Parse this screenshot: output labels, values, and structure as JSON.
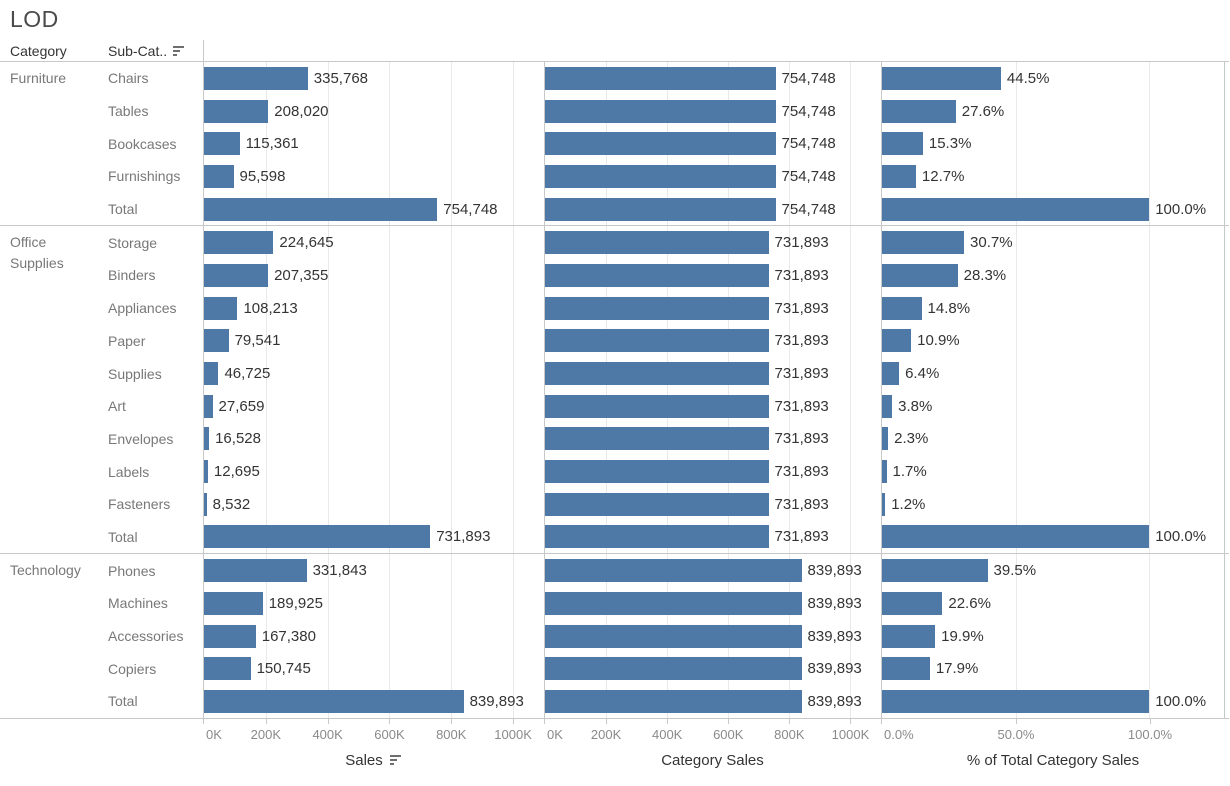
{
  "title": "LOD",
  "header": {
    "category": "Category",
    "subcategory": "Sub-Cat..",
    "subcategory_sort_icon": "sort-descending-icon"
  },
  "colors": {
    "bar": "#4e79a7",
    "panel_border": "#c8c8c8",
    "gridline": "#e9e9e9",
    "row_label_text": "#787878",
    "value_label_text": "#343434"
  },
  "chart_data": {
    "type": "bar",
    "title": "LOD",
    "orientation": "horizontal",
    "legend": "none",
    "grid": "vertical-light",
    "panels": [
      {
        "field": "sales",
        "title": "Sales",
        "sort_icon": "sort-descending-icon",
        "xlim": [
          0,
          1100000
        ],
        "tick_values": [
          0,
          200000,
          400000,
          600000,
          800000,
          1000000
        ],
        "ticks": [
          "0K",
          "200K",
          "400K",
          "600K",
          "800K",
          "1000K"
        ]
      },
      {
        "field": "category_sales",
        "title": "Category Sales",
        "xlim": [
          0,
          1100000
        ],
        "tick_values": [
          0,
          200000,
          400000,
          600000,
          800000,
          1000000
        ],
        "ticks": [
          "0K",
          "200K",
          "400K",
          "600K",
          "800K",
          "1000K"
        ]
      },
      {
        "field": "pct",
        "title": "% of Total Category Sales",
        "xlim": [
          0,
          128
        ],
        "tick_values": [
          0,
          50,
          100
        ],
        "ticks": [
          "0.0%",
          "50.0%",
          "100.0%"
        ]
      }
    ],
    "groups": [
      {
        "category": "Furniture",
        "rows": [
          {
            "subcategory": "Chairs",
            "sales": 335768,
            "sales_label": "335,768",
            "category_sales": 754748,
            "category_sales_label": "754,748",
            "pct": 44.5,
            "pct_label": "44.5%"
          },
          {
            "subcategory": "Tables",
            "sales": 208020,
            "sales_label": "208,020",
            "category_sales": 754748,
            "category_sales_label": "754,748",
            "pct": 27.6,
            "pct_label": "27.6%"
          },
          {
            "subcategory": "Bookcases",
            "sales": 115361,
            "sales_label": "115,361",
            "category_sales": 754748,
            "category_sales_label": "754,748",
            "pct": 15.3,
            "pct_label": "15.3%"
          },
          {
            "subcategory": "Furnishings",
            "sales": 95598,
            "sales_label": "95,598",
            "category_sales": 754748,
            "category_sales_label": "754,748",
            "pct": 12.7,
            "pct_label": "12.7%"
          },
          {
            "subcategory": "Total",
            "sales": 754748,
            "sales_label": "754,748",
            "category_sales": 754748,
            "category_sales_label": "754,748",
            "pct": 100.0,
            "pct_label": "100.0%"
          }
        ]
      },
      {
        "category": "Office Supplies",
        "rows": [
          {
            "subcategory": "Storage",
            "sales": 224645,
            "sales_label": "224,645",
            "category_sales": 731893,
            "category_sales_label": "731,893",
            "pct": 30.7,
            "pct_label": "30.7%"
          },
          {
            "subcategory": "Binders",
            "sales": 207355,
            "sales_label": "207,355",
            "category_sales": 731893,
            "category_sales_label": "731,893",
            "pct": 28.3,
            "pct_label": "28.3%"
          },
          {
            "subcategory": "Appliances",
            "sales": 108213,
            "sales_label": "108,213",
            "category_sales": 731893,
            "category_sales_label": "731,893",
            "pct": 14.8,
            "pct_label": "14.8%"
          },
          {
            "subcategory": "Paper",
            "sales": 79541,
            "sales_label": "79,541",
            "category_sales": 731893,
            "category_sales_label": "731,893",
            "pct": 10.9,
            "pct_label": "10.9%"
          },
          {
            "subcategory": "Supplies",
            "sales": 46725,
            "sales_label": "46,725",
            "category_sales": 731893,
            "category_sales_label": "731,893",
            "pct": 6.4,
            "pct_label": "6.4%"
          },
          {
            "subcategory": "Art",
            "sales": 27659,
            "sales_label": "27,659",
            "category_sales": 731893,
            "category_sales_label": "731,893",
            "pct": 3.8,
            "pct_label": "3.8%"
          },
          {
            "subcategory": "Envelopes",
            "sales": 16528,
            "sales_label": "16,528",
            "category_sales": 731893,
            "category_sales_label": "731,893",
            "pct": 2.3,
            "pct_label": "2.3%"
          },
          {
            "subcategory": "Labels",
            "sales": 12695,
            "sales_label": "12,695",
            "category_sales": 731893,
            "category_sales_label": "731,893",
            "pct": 1.7,
            "pct_label": "1.7%"
          },
          {
            "subcategory": "Fasteners",
            "sales": 8532,
            "sales_label": "8,532",
            "category_sales": 731893,
            "category_sales_label": "731,893",
            "pct": 1.2,
            "pct_label": "1.2%"
          },
          {
            "subcategory": "Total",
            "sales": 731893,
            "sales_label": "731,893",
            "category_sales": 731893,
            "category_sales_label": "731,893",
            "pct": 100.0,
            "pct_label": "100.0%"
          }
        ]
      },
      {
        "category": "Technology",
        "rows": [
          {
            "subcategory": "Phones",
            "sales": 331843,
            "sales_label": "331,843",
            "category_sales": 839893,
            "category_sales_label": "839,893",
            "pct": 39.5,
            "pct_label": "39.5%"
          },
          {
            "subcategory": "Machines",
            "sales": 189925,
            "sales_label": "189,925",
            "category_sales": 839893,
            "category_sales_label": "839,893",
            "pct": 22.6,
            "pct_label": "22.6%"
          },
          {
            "subcategory": "Accessories",
            "sales": 167380,
            "sales_label": "167,380",
            "category_sales": 839893,
            "category_sales_label": "839,893",
            "pct": 19.9,
            "pct_label": "19.9%"
          },
          {
            "subcategory": "Copiers",
            "sales": 150745,
            "sales_label": "150,745",
            "category_sales": 839893,
            "category_sales_label": "839,893",
            "pct": 17.9,
            "pct_label": "17.9%"
          },
          {
            "subcategory": "Total",
            "sales": 839893,
            "sales_label": "839,893",
            "category_sales": 839893,
            "category_sales_label": "839,893",
            "pct": 100.0,
            "pct_label": "100.0%"
          }
        ]
      }
    ]
  }
}
